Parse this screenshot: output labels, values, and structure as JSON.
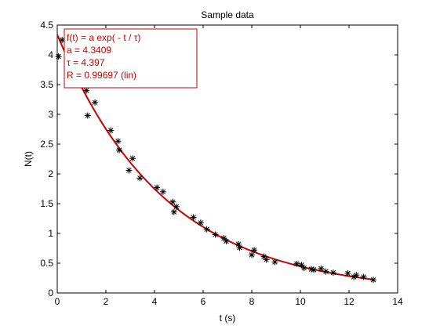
{
  "chart_data": {
    "type": "scatter",
    "title": "Sample data",
    "xlabel": "t (s)",
    "ylabel": "N(t)",
    "xlim": [
      0,
      14
    ],
    "ylim": [
      0,
      4.5
    ],
    "xticks": [
      0,
      2,
      4,
      6,
      8,
      10,
      12,
      14
    ],
    "yticks": [
      0,
      0.5,
      1,
      1.5,
      2,
      2.5,
      3,
      3.5,
      4,
      4.5
    ],
    "grid": false,
    "colors": {
      "points": "#000000",
      "fit": "#cc0000"
    },
    "series": [
      {
        "type": "scatter",
        "marker": "asterisk",
        "x": [
          0.05,
          0.2,
          1.2,
          1.25,
          1.55,
          2.2,
          2.5,
          2.55,
          2.95,
          3.1,
          3.4,
          4.1,
          4.35,
          4.75,
          4.8,
          4.9,
          5.6,
          5.9,
          6.15,
          6.5,
          6.85,
          6.95,
          7.45,
          7.5,
          8.0,
          8.1,
          8.5,
          8.6,
          8.95,
          9.85,
          10.05,
          10.15,
          10.45,
          10.55,
          10.85,
          11.05,
          11.35,
          11.95,
          12.2,
          12.3,
          12.6,
          13.0
        ],
        "y": [
          3.97,
          4.25,
          3.4,
          2.98,
          3.2,
          2.73,
          2.55,
          2.4,
          2.06,
          2.26,
          1.93,
          1.77,
          1.7,
          1.53,
          1.36,
          1.45,
          1.27,
          1.18,
          1.07,
          0.98,
          0.92,
          0.87,
          0.82,
          0.76,
          0.64,
          0.72,
          0.61,
          0.56,
          0.52,
          0.49,
          0.47,
          0.42,
          0.4,
          0.39,
          0.41,
          0.36,
          0.34,
          0.33,
          0.27,
          0.3,
          0.27,
          0.22
        ]
      },
      {
        "type": "line",
        "x_range": [
          0,
          13
        ],
        "fit": {
          "a": 4.3409,
          "tau": 4.397
        }
      }
    ],
    "annotation": {
      "lines": [
        "f(t) = a exp( - t / τ)",
        "a = 4.3409",
        "τ = 4.397",
        "R = 0.99697  (lin)"
      ]
    }
  }
}
